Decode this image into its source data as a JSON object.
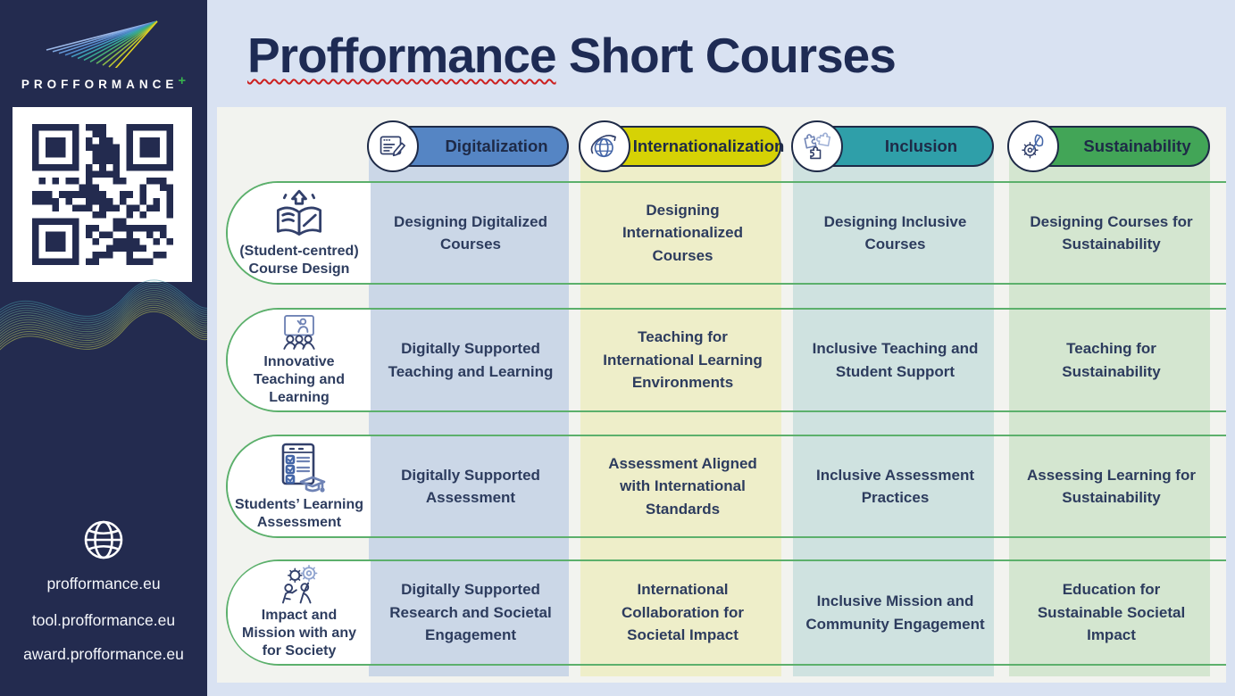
{
  "sidebar": {
    "brand": "PROFFORMANCE",
    "brand_plus": "+",
    "links": [
      "profformance.eu",
      "tool.profformance.eu",
      "award.profformance.eu"
    ]
  },
  "title": {
    "first_word": "Profformance",
    "rest": " Short Courses"
  },
  "columns": [
    {
      "label": "Digitalization",
      "icon": "document-pencil-icon",
      "pill_color": "#5585c4",
      "band_color": "#cbd7e7"
    },
    {
      "label": "Internationalization",
      "icon": "globe-orbit-icon",
      "pill_color": "#d6d205",
      "band_color": "#eeeec9"
    },
    {
      "label": "Inclusion",
      "icon": "puzzle-pieces-icon",
      "pill_color": "#2f9fa9",
      "band_color": "#cfe2e0"
    },
    {
      "label": "Sustainability",
      "icon": "leaf-gear-icon",
      "pill_color": "#42a557",
      "band_color": "#d4e6d0"
    }
  ],
  "rows": [
    {
      "label": "(Student-centred) Course Design",
      "icon": "open-book-arrow-icon",
      "cells": [
        "Designing Digitalized Courses",
        "Designing Internationalized Courses",
        "Designing Inclusive Courses",
        "Designing Courses for Sustainability"
      ]
    },
    {
      "label": "Innovative Teaching and Learning",
      "icon": "presentation-audience-icon",
      "cells": [
        "Digitally Supported Teaching and Learning",
        "Teaching for International Learning Environments",
        "Inclusive Teaching and Student Support",
        "Teaching for Sustainability"
      ]
    },
    {
      "label": "Students’ Learning Assessment",
      "icon": "checklist-graduation-icon",
      "cells": [
        "Digitally Supported Assessment",
        "Assessment Aligned with International Standards",
        "Inclusive Assessment Practices",
        "Assessing Learning for Sustainability"
      ]
    },
    {
      "label": "Impact and Mission with any for Society",
      "icon": "people-gears-icon",
      "cells": [
        "Digitally Supported Research and Societal Engagement",
        "International Collaboration for Societal Impact",
        "Inclusive Mission and Community Engagement",
        "Education for Sustainable Societal Impact"
      ]
    }
  ],
  "colors": {
    "sidebar_bg": "#232b4f",
    "page_bg": "#d9e2f2",
    "container_bg": "#f2f3ef",
    "title_color": "#1e2b54",
    "capsule_border": "#5cb06c",
    "pill_border": "#1e2a47",
    "cell_text": "#2d3c5e",
    "brand_plus_green": "#37b24d",
    "squiggle_red": "#cc1f1f"
  }
}
